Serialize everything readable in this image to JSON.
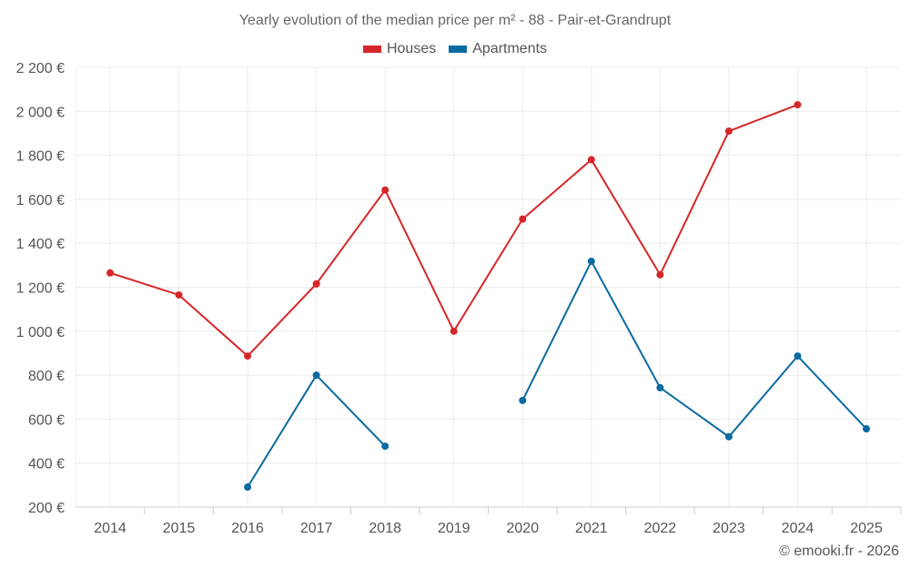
{
  "chart_data": {
    "type": "line",
    "title": "Yearly evolution of the median price per m² - 88 - Pair-et-Grandrupt",
    "x": [
      "2014",
      "2015",
      "2016",
      "2017",
      "2018",
      "2019",
      "2020",
      "2021",
      "2022",
      "2023",
      "2024",
      "2025"
    ],
    "ylim": [
      200,
      2200
    ],
    "yticks": [
      200,
      400,
      600,
      800,
      1000,
      1200,
      1400,
      1600,
      1800,
      2000,
      2200
    ],
    "ytick_labels": [
      "200 €",
      "400 €",
      "600 €",
      "800 €",
      "1 000 €",
      "1 200 €",
      "1 400 €",
      "1 600 €",
      "1 800 €",
      "2 000 €",
      "2 200 €"
    ],
    "grid": true,
    "legend_position": "top-center",
    "series": [
      {
        "name": "Houses",
        "color": "#d62728",
        "values": [
          1265,
          1165,
          887,
          1215,
          1642,
          1000,
          1510,
          1780,
          1257,
          1910,
          2030,
          null
        ]
      },
      {
        "name": "Apartments",
        "color": "#0a6aa1",
        "values": [
          null,
          null,
          291,
          800,
          477,
          null,
          685,
          1318,
          743,
          520,
          887,
          556
        ]
      }
    ]
  },
  "credit": "© emooki.fr - 2026"
}
